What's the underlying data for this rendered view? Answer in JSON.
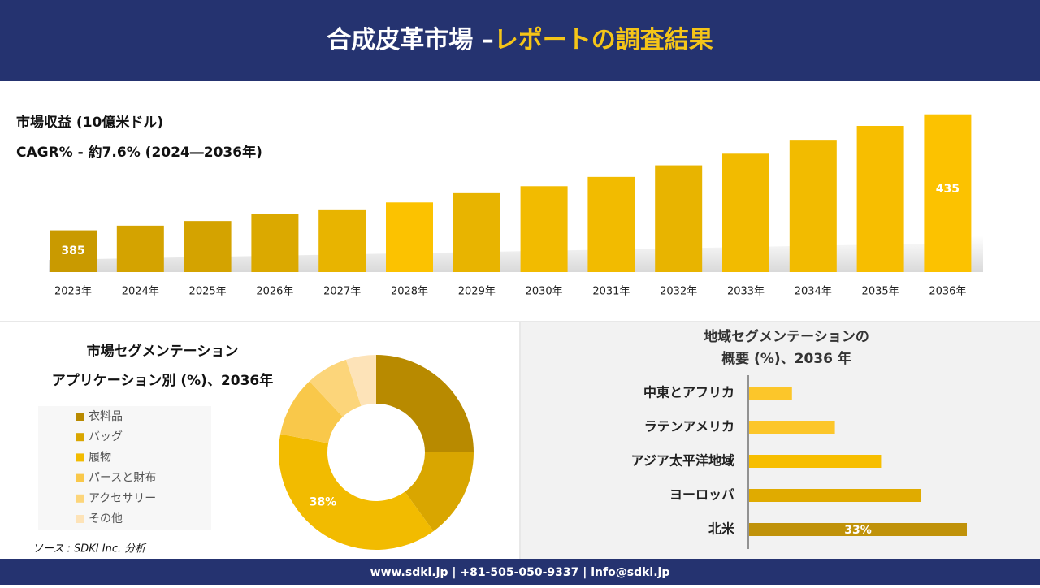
{
  "header": {
    "title": "合成皮革市場 –",
    "title_highlight": "レポートの調査結果"
  },
  "chart_data": [
    {
      "type": "bar",
      "title": "市場収益 (10億米ドル)",
      "subtitle": "CAGR% - 約7.6% (2024―2036年)",
      "categories": [
        "2023年",
        "2024年",
        "2025年",
        "2026年",
        "2027年",
        "2028年",
        "2029年",
        "2030年",
        "2031年",
        "2032年",
        "2033年",
        "2034年",
        "2035年",
        "2036年"
      ],
      "values": [
        385,
        387,
        389,
        392,
        394,
        397,
        401,
        404,
        408,
        413,
        418,
        424,
        430,
        435
      ],
      "value_labels": [
        "385",
        null,
        null,
        null,
        null,
        null,
        null,
        null,
        null,
        null,
        null,
        null,
        null,
        "435"
      ],
      "colors": [
        "#c99a00",
        "#d4a300",
        "#d4a300",
        "#dba900",
        "#e8b400",
        "#fcc200",
        "#e8b400",
        "#f2bb00",
        "#f2bb00",
        "#e8b400",
        "#f2bb00",
        "#f2bb00",
        "#f7be00",
        "#fcc200"
      ],
      "ylim": [
        367,
        437
      ]
    },
    {
      "type": "donut",
      "title": "市場セグメンテーション",
      "subtitle": "アプリケーション別 (%)、2036年",
      "categories": [
        "衣料品",
        "バッグ",
        "履物",
        "パースと財布",
        "アクセサリー",
        "その他"
      ],
      "values": [
        25,
        15,
        38,
        10,
        7,
        5
      ],
      "value_labels": [
        null,
        null,
        "38%",
        null,
        null,
        null
      ],
      "colors": [
        "#b88a00",
        "#d9a600",
        "#f2bb00",
        "#f9c84a",
        "#fcd57a",
        "#fde3b8"
      ]
    },
    {
      "type": "hbar",
      "title": "地域セグメンテーションの",
      "subtitle": "概要 (%)、2036 年",
      "categories": [
        "中東とアフリカ",
        "ラテンアメリカ",
        "アジア太平洋地域",
        "ヨーロッパ",
        "北米"
      ],
      "values": [
        6.5,
        13,
        20,
        26,
        33
      ],
      "value_labels": [
        null,
        null,
        null,
        null,
        "33%"
      ],
      "colors": [
        "#fcc62a",
        "#fcc62a",
        "#f7be00",
        "#e0ab00",
        "#c0920a"
      ],
      "xlim": [
        0,
        33
      ]
    }
  ],
  "source": "ソース : SDKI Inc. 分析",
  "footer": "www.sdki.jp | +81-505-050-9337 | info@sdki.jp"
}
